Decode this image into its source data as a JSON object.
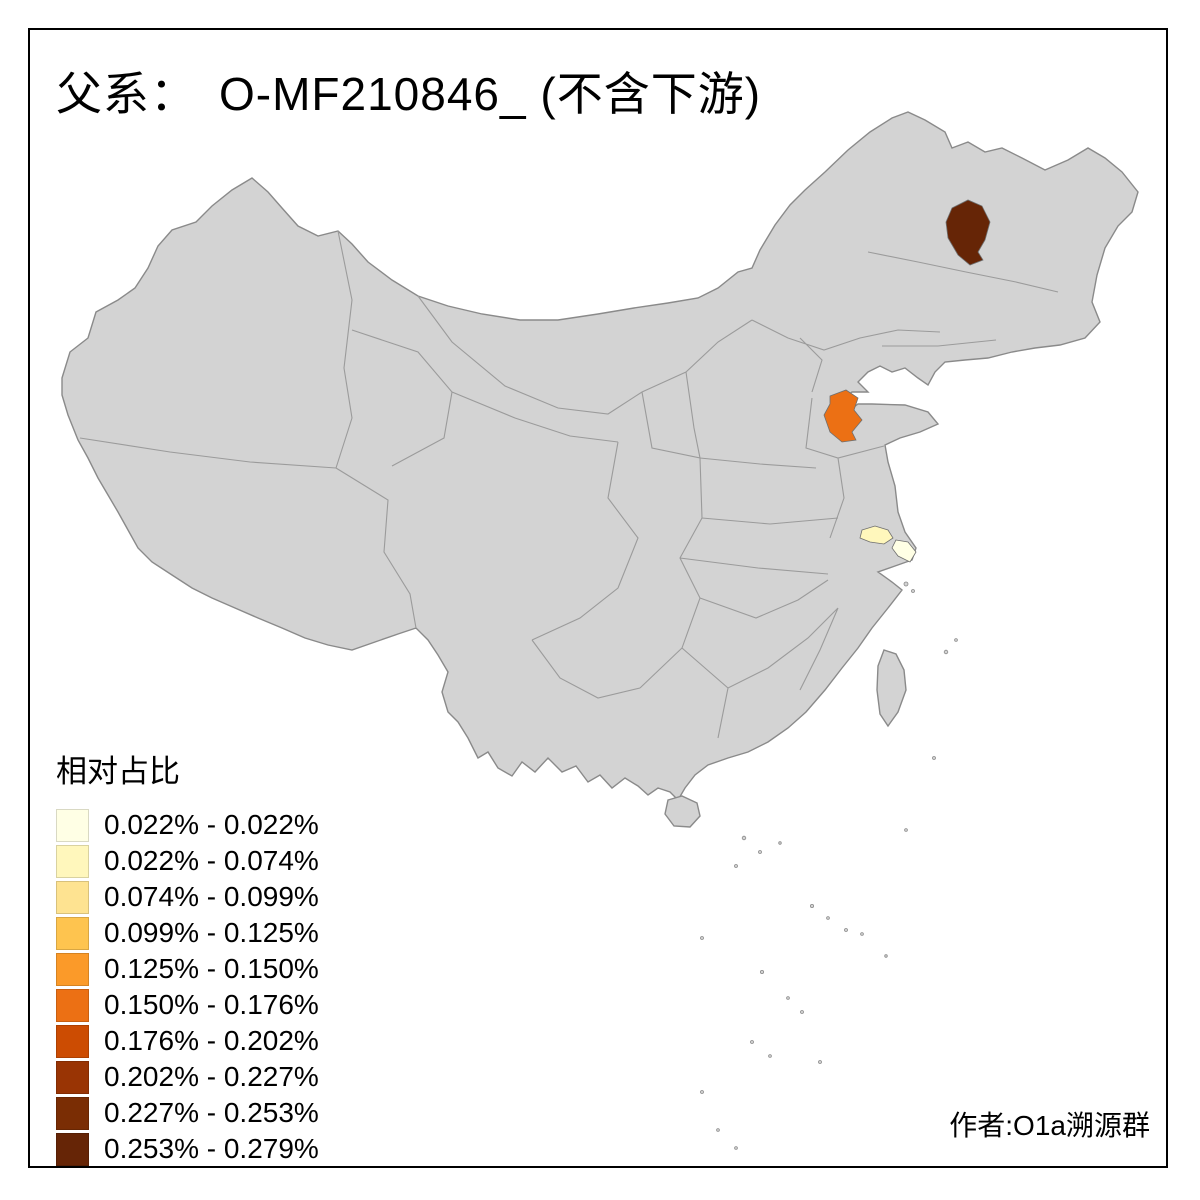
{
  "title": {
    "prefix": "父系：",
    "main": "O-MF210846_ (不含下游)"
  },
  "legend": {
    "title": "相对占比",
    "entries": [
      {
        "range": "0.022% - 0.022%",
        "color": "#FFFFE5"
      },
      {
        "range": "0.022% - 0.074%",
        "color": "#FFF7BC"
      },
      {
        "range": "0.074% - 0.099%",
        "color": "#FEE391"
      },
      {
        "range": "0.099% - 0.125%",
        "color": "#FEC44F"
      },
      {
        "range": "0.125% - 0.150%",
        "color": "#FB9A29"
      },
      {
        "range": "0.150% - 0.176%",
        "color": "#EC7014"
      },
      {
        "range": "0.176% - 0.202%",
        "color": "#CC4C02"
      },
      {
        "range": "0.202% - 0.227%",
        "color": "#993404"
      },
      {
        "range": "0.227% - 0.253%",
        "color": "#7A2D04"
      },
      {
        "range": "0.253% - 0.279%",
        "color": "#662506"
      }
    ]
  },
  "credit": "作者:O1a溯源群",
  "map": {
    "base_fill": "#D3D3D3",
    "coast_stroke": "#8A8A8A",
    "inner_stroke": "#9B9B9B",
    "background": "#FFFFFF",
    "highlighted_regions": [
      {
        "name": "region-heilongjiang-highlight",
        "range": "0.253% - 0.279%",
        "color": "#662506"
      },
      {
        "name": "region-shandong-highlight",
        "range": "0.150% - 0.176%",
        "color": "#EC7014"
      },
      {
        "name": "region-jiangsu-west-highlight",
        "range": "0.022% - 0.074%",
        "color": "#FFF7BC"
      },
      {
        "name": "region-jiangsu-east-highlight",
        "range": "0.022% - 0.022%",
        "color": "#FFFFE5"
      }
    ]
  }
}
